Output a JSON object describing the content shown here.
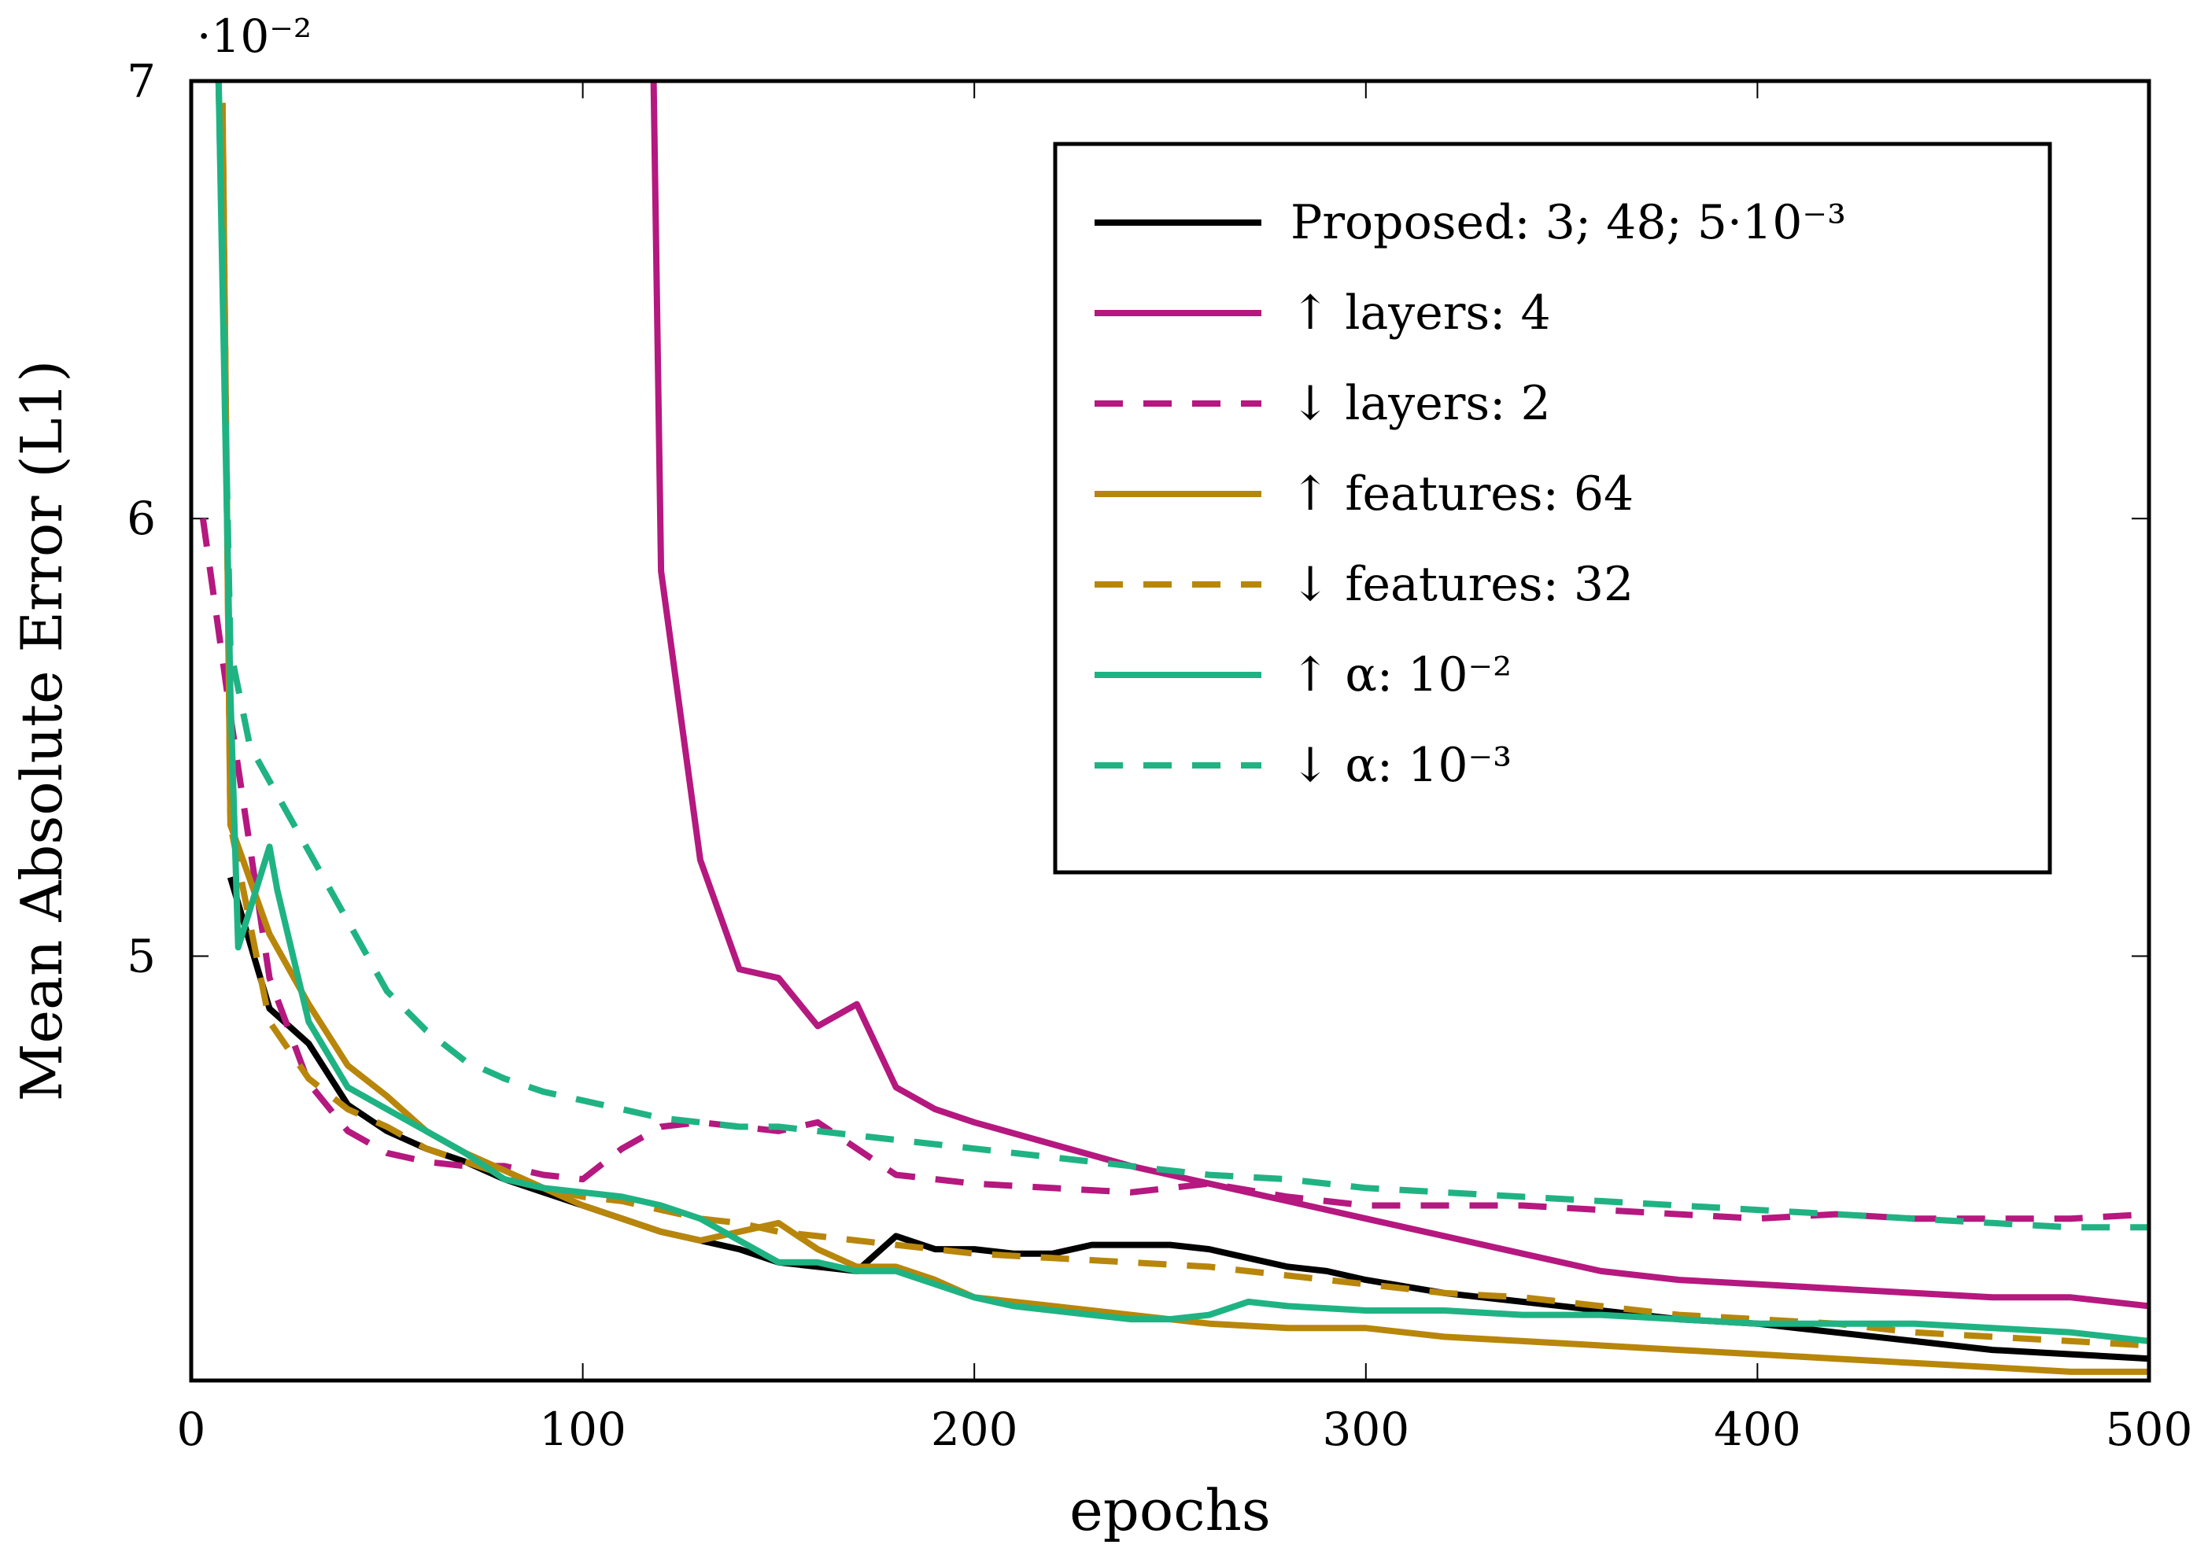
{
  "chart_data": {
    "type": "line",
    "title": "",
    "xlabel": "epochs",
    "ylabel": "Mean Absolute Error (L1)",
    "xlim": [
      0,
      500
    ],
    "ylim": [
      4.03,
      7.0
    ],
    "y_scale_label": "·10⁻²",
    "x_ticks": [
      0,
      100,
      200,
      300,
      400,
      500
    ],
    "y_ticks": [
      5,
      6,
      7
    ],
    "x_tick_labels": [
      "0",
      "100",
      "200",
      "300",
      "400",
      "500"
    ],
    "y_tick_labels": [
      "5",
      "6",
      "7"
    ],
    "grid": false,
    "legend_position": "top-right",
    "series": [
      {
        "name": "Proposed: 3; 48; 5·10⁻³",
        "color": "#000000",
        "dash": "solid",
        "x": [
          10,
          20,
          30,
          40,
          50,
          60,
          70,
          80,
          90,
          100,
          110,
          120,
          130,
          140,
          150,
          160,
          170,
          180,
          190,
          200,
          210,
          220,
          230,
          240,
          250,
          260,
          270,
          280,
          290,
          300,
          320,
          340,
          360,
          380,
          400,
          420,
          440,
          460,
          480,
          500
        ],
        "y": [
          5.18,
          4.88,
          4.8,
          4.66,
          4.6,
          4.56,
          4.53,
          4.49,
          4.46,
          4.43,
          4.4,
          4.37,
          4.35,
          4.33,
          4.3,
          4.29,
          4.28,
          4.36,
          4.33,
          4.33,
          4.32,
          4.32,
          4.34,
          4.34,
          4.34,
          4.33,
          4.31,
          4.29,
          4.28,
          4.26,
          4.23,
          4.21,
          4.19,
          4.17,
          4.16,
          4.14,
          4.12,
          4.1,
          4.09,
          4.08
        ]
      },
      {
        "name": "↑ layers: 4",
        "color": "#b5187f",
        "dash": "solid",
        "x": [
          118,
          120,
          130,
          140,
          150,
          160,
          170,
          180,
          190,
          200,
          220,
          240,
          260,
          280,
          300,
          320,
          340,
          360,
          380,
          400,
          420,
          440,
          460,
          480,
          500
        ],
        "y": [
          7.05,
          5.88,
          5.22,
          4.97,
          4.95,
          4.84,
          4.89,
          4.7,
          4.65,
          4.62,
          4.57,
          4.52,
          4.48,
          4.44,
          4.4,
          4.36,
          4.32,
          4.28,
          4.26,
          4.25,
          4.24,
          4.23,
          4.22,
          4.22,
          4.2
        ]
      },
      {
        "name": "↓ layers: 2",
        "color": "#b5187f",
        "dash": "dashed",
        "x": [
          3,
          10,
          20,
          30,
          40,
          50,
          60,
          70,
          80,
          90,
          100,
          110,
          120,
          130,
          140,
          150,
          160,
          170,
          180,
          190,
          200,
          220,
          240,
          260,
          280,
          300,
          320,
          340,
          360,
          380,
          400,
          420,
          440,
          460,
          480,
          500
        ],
        "y": [
          6.0,
          5.55,
          4.95,
          4.71,
          4.6,
          4.55,
          4.53,
          4.52,
          4.52,
          4.5,
          4.49,
          4.56,
          4.61,
          4.62,
          4.61,
          4.6,
          4.62,
          4.56,
          4.5,
          4.49,
          4.48,
          4.47,
          4.46,
          4.48,
          4.45,
          4.43,
          4.43,
          4.43,
          4.42,
          4.41,
          4.4,
          4.41,
          4.4,
          4.4,
          4.4,
          4.41
        ]
      },
      {
        "name": "↑ features: 64",
        "color": "#b8860b",
        "dash": "solid",
        "x": [
          8,
          10,
          20,
          30,
          40,
          50,
          60,
          70,
          80,
          90,
          100,
          110,
          120,
          130,
          140,
          150,
          160,
          170,
          180,
          190,
          200,
          220,
          240,
          260,
          280,
          300,
          320,
          340,
          360,
          380,
          400,
          420,
          440,
          460,
          480,
          500
        ],
        "y": [
          6.95,
          5.3,
          5.05,
          4.89,
          4.75,
          4.68,
          4.6,
          4.55,
          4.51,
          4.47,
          4.43,
          4.4,
          4.37,
          4.35,
          4.37,
          4.39,
          4.33,
          4.29,
          4.29,
          4.26,
          4.22,
          4.2,
          4.18,
          4.16,
          4.15,
          4.15,
          4.13,
          4.12,
          4.11,
          4.1,
          4.09,
          4.08,
          4.07,
          4.06,
          4.05,
          4.05
        ]
      },
      {
        "name": "↓ features: 32",
        "color": "#b8860b",
        "dash": "dashed",
        "x": [
          8,
          10,
          20,
          30,
          40,
          50,
          60,
          70,
          80,
          90,
          100,
          110,
          120,
          130,
          140,
          150,
          160,
          170,
          180,
          190,
          200,
          220,
          240,
          260,
          280,
          300,
          320,
          340,
          360,
          380,
          400,
          420,
          440,
          460,
          480,
          500
        ],
        "y": [
          6.95,
          5.3,
          4.85,
          4.72,
          4.65,
          4.61,
          4.56,
          4.53,
          4.5,
          4.47,
          4.45,
          4.44,
          4.42,
          4.4,
          4.39,
          4.37,
          4.36,
          4.35,
          4.34,
          4.33,
          4.32,
          4.31,
          4.3,
          4.29,
          4.27,
          4.25,
          4.23,
          4.22,
          4.2,
          4.18,
          4.17,
          4.16,
          4.14,
          4.13,
          4.12,
          4.11
        ]
      },
      {
        "name": "↑ α: 10⁻²",
        "color": "#1fb383",
        "dash": "solid",
        "x": [
          7,
          10,
          12,
          20,
          22,
          30,
          40,
          50,
          60,
          70,
          80,
          90,
          100,
          110,
          120,
          130,
          140,
          150,
          160,
          170,
          180,
          190,
          200,
          210,
          220,
          230,
          240,
          250,
          260,
          270,
          280,
          300,
          320,
          340,
          360,
          380,
          400,
          420,
          440,
          460,
          480,
          500
        ],
        "y": [
          7.0,
          5.6,
          5.02,
          5.25,
          5.15,
          4.85,
          4.7,
          4.65,
          4.6,
          4.55,
          4.49,
          4.47,
          4.46,
          4.45,
          4.43,
          4.4,
          4.35,
          4.3,
          4.3,
          4.28,
          4.28,
          4.25,
          4.22,
          4.2,
          4.19,
          4.18,
          4.17,
          4.17,
          4.18,
          4.21,
          4.2,
          4.19,
          4.19,
          4.18,
          4.18,
          4.17,
          4.16,
          4.16,
          4.16,
          4.15,
          4.14,
          4.12
        ]
      },
      {
        "name": "↓ α: 10⁻³",
        "color": "#1fb383",
        "dash": "dashed",
        "x": [
          7,
          10,
          15,
          20,
          30,
          40,
          50,
          60,
          70,
          80,
          90,
          100,
          110,
          120,
          130,
          140,
          150,
          160,
          170,
          180,
          190,
          200,
          220,
          240,
          260,
          280,
          300,
          320,
          340,
          360,
          380,
          400,
          420,
          440,
          460,
          480,
          500
        ],
        "y": [
          7.0,
          5.7,
          5.48,
          5.4,
          5.24,
          5.08,
          4.92,
          4.83,
          4.76,
          4.72,
          4.69,
          4.67,
          4.65,
          4.63,
          4.62,
          4.61,
          4.61,
          4.6,
          4.59,
          4.58,
          4.57,
          4.56,
          4.54,
          4.52,
          4.5,
          4.49,
          4.47,
          4.46,
          4.45,
          4.44,
          4.43,
          4.42,
          4.41,
          4.4,
          4.39,
          4.38,
          4.38
        ]
      }
    ]
  }
}
